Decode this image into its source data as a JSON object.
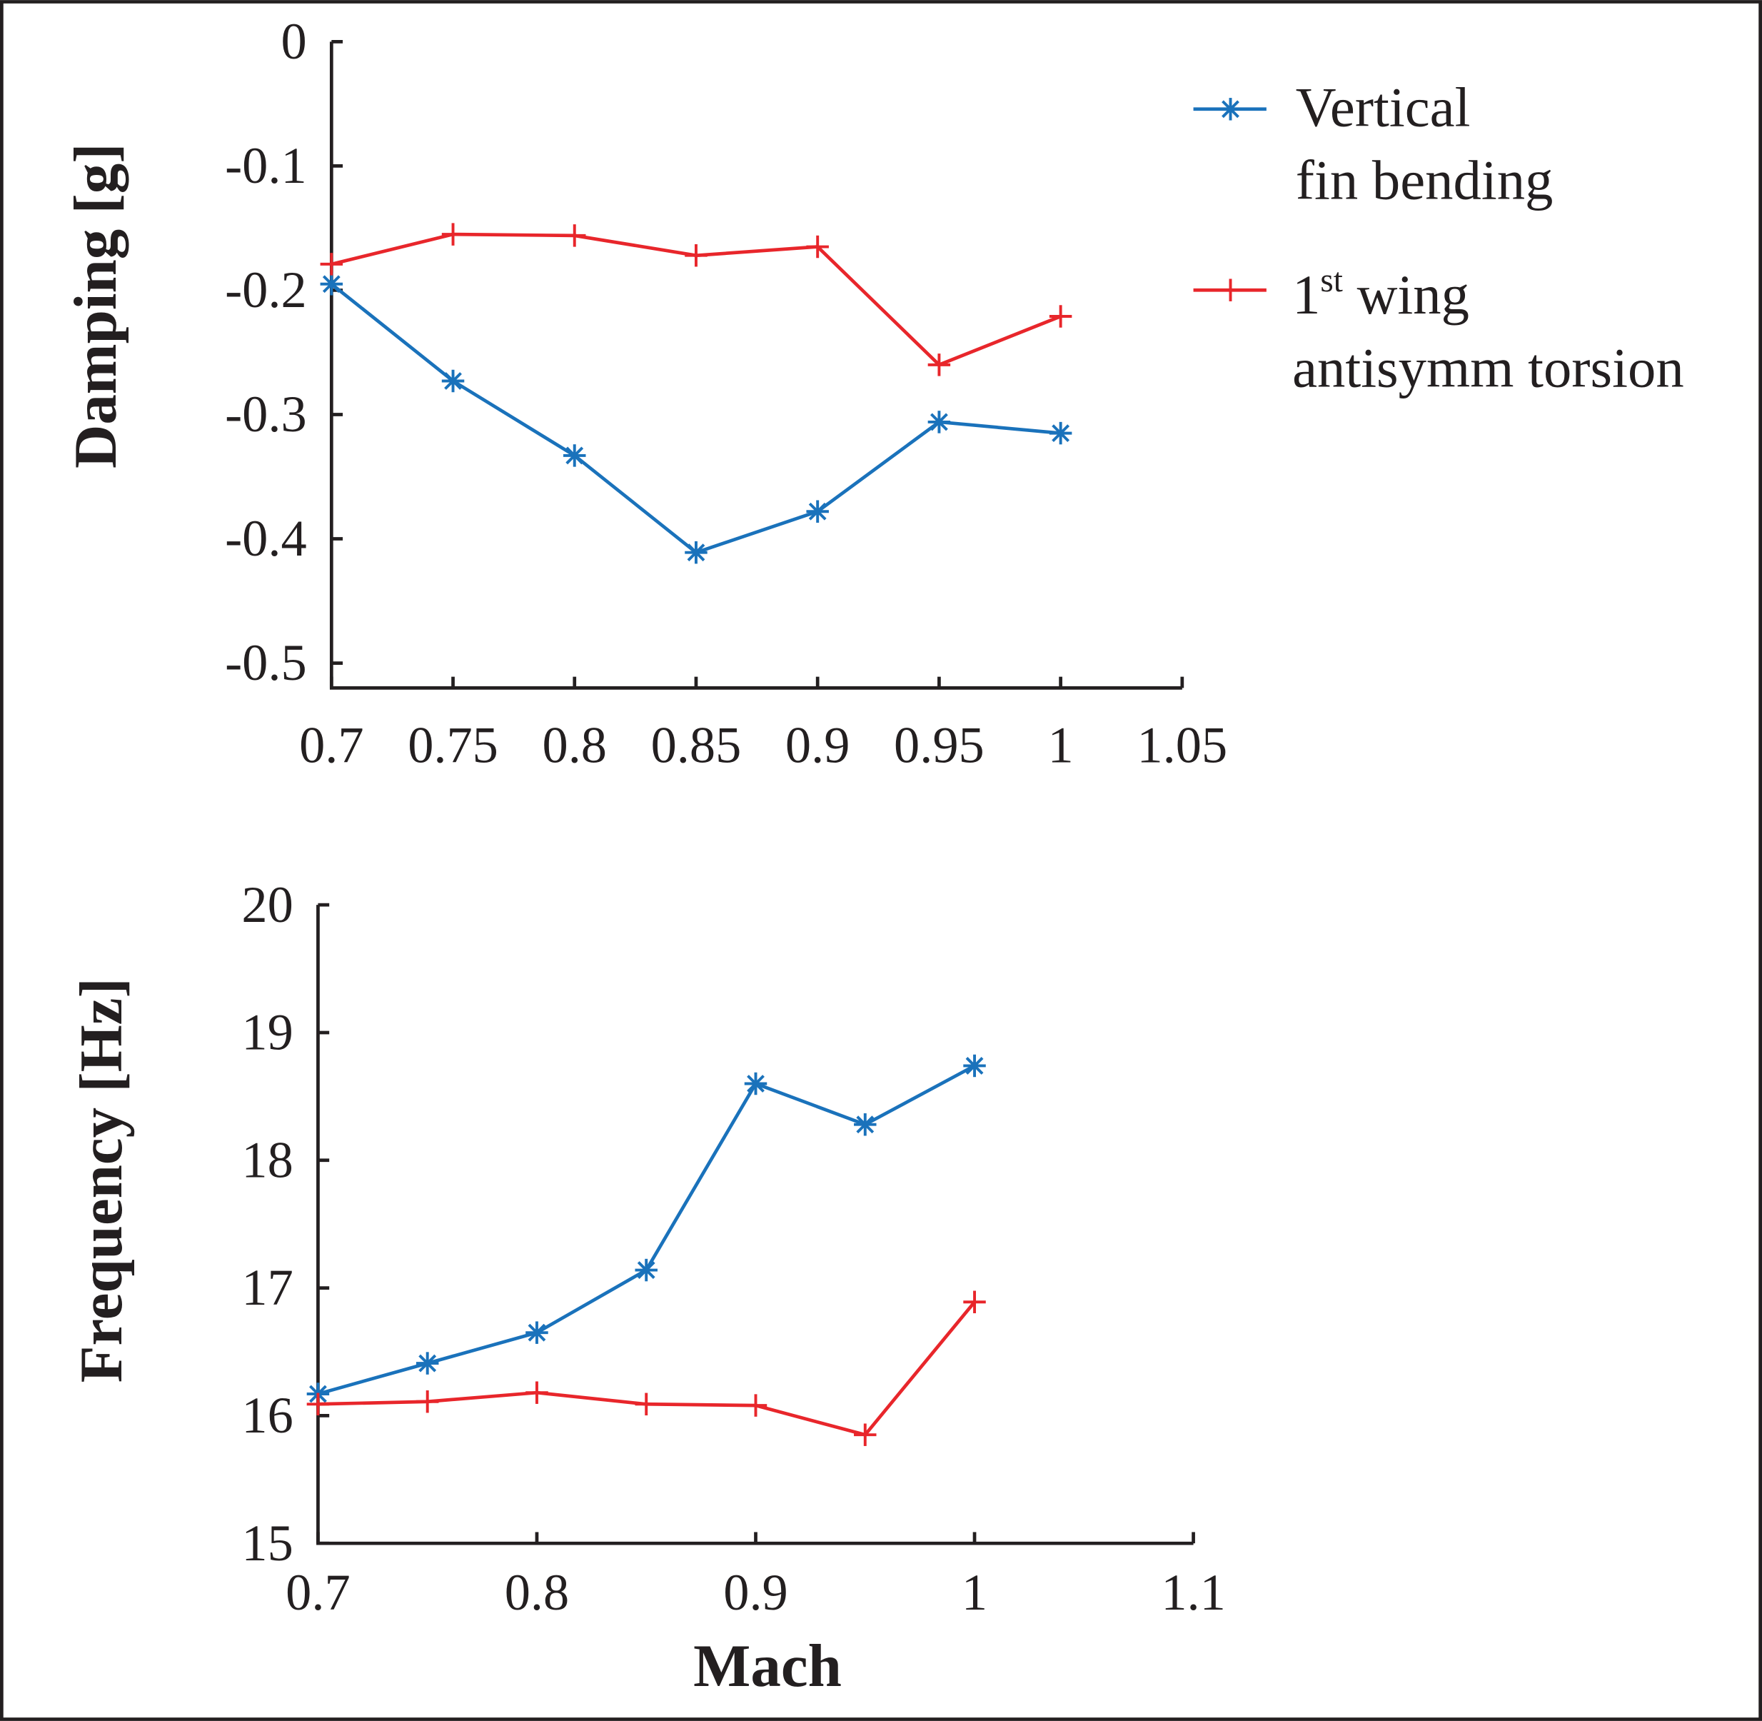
{
  "colors": {
    "series_blue": "#1a72bb",
    "series_red": "#e8262b",
    "axis": "#231f20"
  },
  "legend": {
    "placement": "top-right",
    "entries": [
      {
        "marker": "asterisk",
        "color": "#1a72bb",
        "line1": "Vertical",
        "line2": "fin bending"
      },
      {
        "marker": "plus",
        "color": "#e8262b",
        "line1_main": "1",
        "line1_sup": "st",
        "line1_rest": " wing",
        "line2": "antisymm torsion"
      }
    ]
  },
  "chart_data": [
    {
      "type": "line",
      "ylabel": "Damping [g]",
      "xlabel": "",
      "xlim": [
        0.7,
        1.05
      ],
      "ylim": [
        -0.52,
        0
      ],
      "grid": false,
      "xticks": [
        "0.7",
        "0.75",
        "0.8",
        "0.85",
        "0.9",
        "0.95",
        "1",
        "1.05"
      ],
      "yticks": [
        "0",
        "-0.1",
        "-0.2",
        "-0.3",
        "-0.4",
        "-0.5"
      ],
      "x": [
        0.7,
        0.75,
        0.8,
        0.85,
        0.9,
        0.95,
        1.0
      ],
      "series": [
        {
          "name": "Vertical fin bending",
          "marker": "asterisk",
          "color": "#1a72bb",
          "values": [
            -0.195,
            -0.273,
            -0.333,
            -0.411,
            -0.378,
            -0.306,
            -0.315
          ]
        },
        {
          "name": "1st wing antisymm torsion",
          "marker": "plus",
          "color": "#e8262b",
          "values": [
            -0.179,
            -0.155,
            -0.156,
            -0.172,
            -0.165,
            -0.26,
            -0.221
          ]
        }
      ]
    },
    {
      "type": "line",
      "ylabel": "Frequency [Hz]",
      "xlabel": "Mach",
      "xlim": [
        0.7,
        1.1
      ],
      "ylim": [
        15,
        20
      ],
      "grid": false,
      "xticks": [
        "0.7",
        "0.8",
        "0.9",
        "1",
        "1.1"
      ],
      "yticks": [
        "20",
        "19",
        "18",
        "17",
        "16",
        "15"
      ],
      "x": [
        0.7,
        0.75,
        0.8,
        0.85,
        0.9,
        0.95,
        1.0
      ],
      "series": [
        {
          "name": "Vertical fin bending",
          "marker": "asterisk",
          "color": "#1a72bb",
          "values": [
            16.17,
            16.41,
            16.65,
            17.14,
            18.6,
            18.28,
            18.74
          ]
        },
        {
          "name": "1st wing antisymm torsion",
          "marker": "plus",
          "color": "#e8262b",
          "values": [
            16.09,
            16.11,
            16.18,
            16.09,
            16.08,
            15.85,
            16.89
          ]
        }
      ]
    }
  ]
}
